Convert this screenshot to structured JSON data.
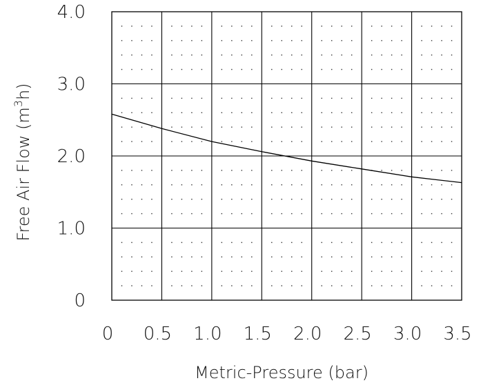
{
  "chart_data": {
    "type": "line",
    "title": "",
    "xlabel": "Metric-Pressure (bar)",
    "ylabel_text": "Free Air Flow (m",
    "ylabel_sup": "3",
    "ylabel_end": "h)",
    "xlim": [
      0,
      3.5
    ],
    "ylim": [
      0,
      4.0
    ],
    "x_ticks": [
      0,
      0.5,
      1.0,
      1.5,
      2.0,
      2.5,
      3.0,
      3.5
    ],
    "x_tick_labels": [
      "0",
      "0.5",
      "1.0",
      "1.5",
      "2.0",
      "2.5",
      "3.0",
      "3.5"
    ],
    "y_ticks": [
      0,
      1.0,
      2.0,
      3.0,
      4.0
    ],
    "y_tick_labels": [
      "0",
      "1.0",
      "2.0",
      "3.0",
      "4.0"
    ],
    "grid": true,
    "minor_grid": "dotted",
    "legend": "none",
    "series": [
      {
        "x": [
          0,
          0.5,
          1.0,
          1.5,
          2.0,
          2.5,
          3.0,
          3.5
        ],
        "y": [
          2.58,
          2.38,
          2.2,
          2.06,
          1.93,
          1.82,
          1.71,
          1.63
        ]
      }
    ],
    "colors": {
      "line": "#000000",
      "grid": "#000000",
      "dots": "#333333"
    }
  }
}
